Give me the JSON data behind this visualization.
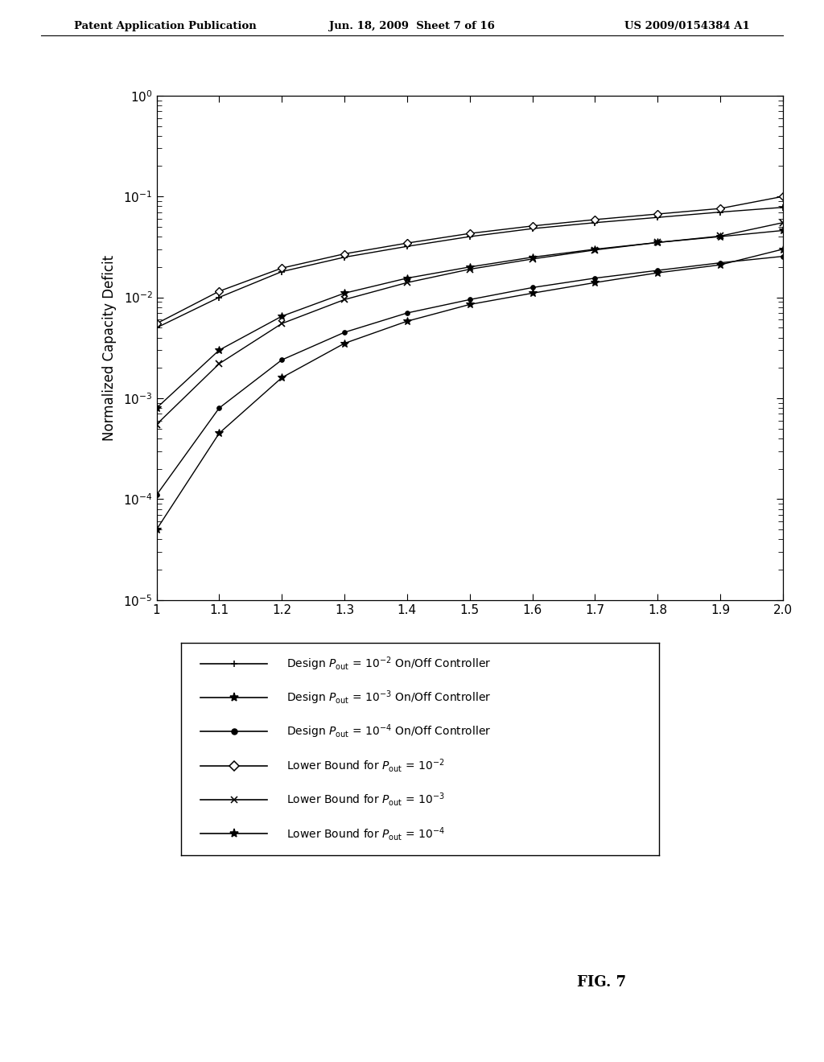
{
  "x": [
    1.0,
    1.1,
    1.2,
    1.3,
    1.4,
    1.5,
    1.6,
    1.7,
    1.8,
    1.9,
    2.0
  ],
  "design_p2": [
    0.005,
    0.01,
    0.018,
    0.025,
    0.032,
    0.04,
    0.048,
    0.055,
    0.062,
    0.07,
    0.078
  ],
  "design_p3": [
    0.0008,
    0.003,
    0.0065,
    0.011,
    0.0155,
    0.02,
    0.025,
    0.03,
    0.035,
    0.04,
    0.046
  ],
  "design_p4": [
    0.00011,
    0.0008,
    0.0024,
    0.0045,
    0.007,
    0.0095,
    0.0125,
    0.0155,
    0.0185,
    0.022,
    0.0255
  ],
  "lb_p2": [
    0.0055,
    0.0115,
    0.0195,
    0.027,
    0.0345,
    0.043,
    0.051,
    0.059,
    0.067,
    0.076,
    0.1
  ],
  "lb_p3": [
    0.00055,
    0.0022,
    0.0055,
    0.0095,
    0.014,
    0.019,
    0.024,
    0.0295,
    0.035,
    0.0405,
    0.055
  ],
  "lb_p4": [
    5e-05,
    0.00045,
    0.0016,
    0.0035,
    0.0058,
    0.0085,
    0.011,
    0.014,
    0.0175,
    0.021,
    0.03
  ],
  "ylim": [
    1e-05,
    1.0
  ],
  "xlim": [
    1.0,
    2.0
  ],
  "ylabel": "Normalized Capacity Deficit",
  "title_header_left": "Patent Application Publication",
  "title_header_mid": "Jun. 18, 2009  Sheet 7 of 16",
  "title_header_right": "US 2009/0154384 A1",
  "fig_label": "FIG. 7",
  "background_color": "#ffffff",
  "xticks": [
    1.0,
    1.1,
    1.2,
    1.3,
    1.4,
    1.5,
    1.6,
    1.7,
    1.8,
    1.9,
    2.0
  ]
}
